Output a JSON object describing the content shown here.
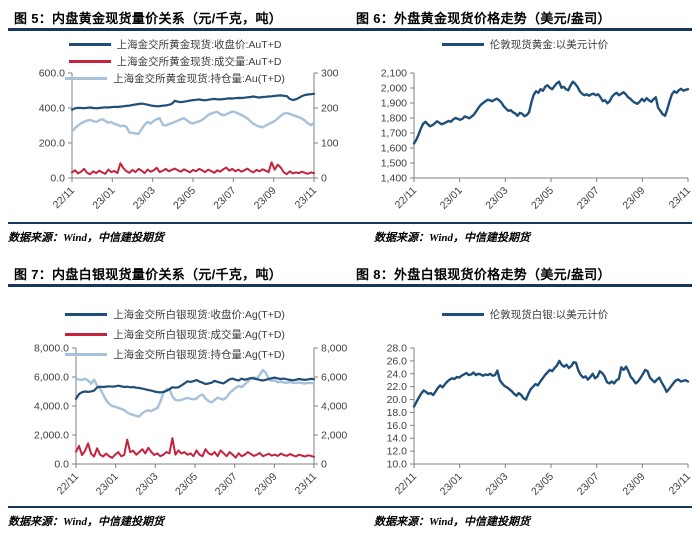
{
  "page": {
    "background": "#ffffff",
    "rule_color": "#17375E",
    "axis_color": "#808080",
    "label_color": "#404040"
  },
  "chart_data": [
    {
      "type": "line",
      "title": "图 5：内盘黄金现货量价关系（元/千克，吨）",
      "source": "数据来源：Wind，中信建投期货",
      "legend_position": "top-center",
      "legend": [
        {
          "label": "上海金交所黄金现货:收盘价:AuT+D",
          "color": "#1F4E79"
        },
        {
          "label": "上海金交所黄金现货:成交量:AuT+D",
          "color": "#C5233D"
        },
        {
          "label": "上海金交所黄金现货:持仓量:Au(T+D)",
          "color": "#A6C1DA"
        }
      ],
      "left_axis": {
        "min": 0,
        "max": 600,
        "step": 200,
        "decimals": 1
      },
      "right_axis": {
        "min": 0,
        "max": 300,
        "step": 100,
        "decimals": 0
      },
      "x_labels": [
        "22/11",
        "23/01",
        "23/03",
        "23/05",
        "23/07",
        "23/09",
        "23/11"
      ],
      "series": [
        {
          "name": "上海金交所黄金现货:持仓量:Au(T+D)",
          "axis": "right",
          "color": "#A6C1DA",
          "width": 2.4,
          "values": [
            133,
            142,
            150,
            156,
            161,
            164,
            166,
            163,
            160,
            165,
            168,
            163,
            158,
            160,
            155,
            152,
            148,
            150,
            146,
            130,
            129,
            127,
            126,
            140,
            152,
            160,
            156,
            163,
            168,
            171,
            152,
            150,
            154,
            157,
            160,
            164,
            168,
            171,
            165,
            158,
            156,
            159,
            162,
            166,
            172,
            180,
            184,
            187,
            189,
            183,
            179,
            182,
            186,
            190,
            188,
            184,
            180,
            176,
            170,
            162,
            155,
            150,
            147,
            145,
            150,
            154,
            158,
            163,
            170,
            178,
            184,
            186,
            183,
            180,
            177,
            174,
            170,
            164,
            156,
            151,
            158
          ]
        },
        {
          "name": "上海金交所黄金现货:成交量:AuT+D",
          "axis": "right",
          "color": "#C5233D",
          "width": 2,
          "values": [
            16,
            22,
            13,
            18,
            26,
            15,
            11,
            19,
            14,
            21,
            16,
            12,
            24,
            17,
            20,
            14,
            42,
            28,
            19,
            15,
            23,
            17,
            26,
            21,
            14,
            24,
            18,
            22,
            29,
            17,
            21,
            26,
            19,
            23,
            27,
            22,
            18,
            25,
            21,
            16,
            23,
            19,
            26,
            22,
            17,
            24,
            20,
            15,
            22,
            18,
            25,
            30,
            21,
            26,
            19,
            24,
            18,
            22,
            27,
            20,
            16,
            23,
            19,
            25,
            21,
            17,
            45,
            24,
            38,
            30,
            16,
            11,
            19,
            13,
            16,
            14,
            18,
            15,
            12,
            16,
            14
          ]
        },
        {
          "name": "上海金交所黄金现货:收盘价:AuT+D",
          "axis": "left",
          "color": "#1F4E79",
          "width": 2.2,
          "values": [
            390,
            398,
            401,
            400,
            399,
            401,
            403,
            400,
            398,
            400,
            402,
            404,
            403,
            405,
            407,
            406,
            408,
            410,
            412,
            414,
            417,
            420,
            423,
            425,
            422,
            419,
            415,
            412,
            410,
            411,
            413,
            415,
            418,
            424,
            441,
            436,
            433,
            436,
            439,
            442,
            445,
            447,
            449,
            446,
            444,
            447,
            450,
            452,
            450,
            449,
            451,
            453,
            455,
            454,
            456,
            458,
            457,
            459,
            461,
            463,
            466,
            462,
            460,
            463,
            464,
            466,
            467,
            469,
            471,
            472,
            470,
            468,
            452,
            446,
            450,
            458,
            468,
            474,
            477,
            479,
            481
          ]
        }
      ]
    },
    {
      "type": "line",
      "title": "图 6：外盘黄金现货价格走势（美元/盎司）",
      "source": "数据来源：Wind，中信建投期货",
      "legend_position": "top-center",
      "legend": [
        {
          "label": "伦敦现货黄金:以美元计价",
          "color": "#1F4E79"
        }
      ],
      "left_axis": {
        "min": 1400,
        "max": 2100,
        "step": 100,
        "decimals": 0
      },
      "x_labels": [
        "22/11",
        "23/01",
        "23/03",
        "23/05",
        "23/07",
        "23/09",
        "23/11"
      ],
      "series": [
        {
          "name": "伦敦现货黄金:以美元计价",
          "axis": "left",
          "color": "#1F4E79",
          "width": 2.4,
          "values": [
            1630,
            1655,
            1690,
            1730,
            1762,
            1775,
            1758,
            1745,
            1752,
            1763,
            1778,
            1768,
            1758,
            1764,
            1772,
            1780,
            1775,
            1790,
            1800,
            1795,
            1788,
            1795,
            1810,
            1805,
            1798,
            1810,
            1822,
            1845,
            1868,
            1888,
            1900,
            1912,
            1922,
            1918,
            1912,
            1922,
            1928,
            1918,
            1902,
            1878,
            1862,
            1848,
            1852,
            1838,
            1830,
            1815,
            1835,
            1828,
            1812,
            1820,
            1838,
            1905,
            1955,
            1978,
            1968,
            1992,
            1982,
            2008,
            2018,
            2002,
            1992,
            2012,
            2032,
            2042,
            2002,
            2008,
            1992,
            1985,
            2018,
            2042,
            2028,
            2008,
            1978,
            1962,
            1952,
            1958,
            1948,
            1958,
            1962,
            1952,
            1958,
            1938,
            1912,
            1918,
            1898,
            1912,
            1942,
            1958,
            1968,
            1952,
            1962,
            1972,
            1958,
            1938,
            1928,
            1912,
            1902,
            1895,
            1908,
            1928,
            1912,
            1932,
            1918,
            1908,
            1925,
            1938,
            1868,
            1848,
            1825,
            1815,
            1858,
            1912,
            1958,
            1978,
            1968,
            1985,
            1995,
            1982,
            1988,
            1992
          ]
        }
      ]
    },
    {
      "type": "line",
      "title": "图 7：内盘白银现货量价关系（元/千克，吨）",
      "source": "数据来源：Wind，中信建投期货",
      "legend_position": "top-center",
      "legend": [
        {
          "label": "上海金交所白银现货:收盘价:Ag(T+D)",
          "color": "#1F4E79"
        },
        {
          "label": "上海金交所白银现货:成交量:Ag(T+D)",
          "color": "#C5233D"
        },
        {
          "label": "上海金交所白银现货:持仓量:Ag(T+D)",
          "color": "#A6C1DA"
        }
      ],
      "left_axis": {
        "min": 0,
        "max": 8000,
        "step": 2000,
        "decimals": 1
      },
      "right_axis": {
        "min": 0,
        "max": 8000,
        "step": 2000,
        "decimals": 0
      },
      "x_labels": [
        "22/11",
        "23/01",
        "23/03",
        "23/05",
        "23/07",
        "23/09",
        "23/11"
      ],
      "series": [
        {
          "name": "上海金交所白银现货:持仓量:Ag(T+D)",
          "axis": "right",
          "color": "#A6C1DA",
          "width": 2.4,
          "values": [
            5880,
            5830,
            5790,
            5880,
            5760,
            5540,
            5820,
            5400,
            5200,
            4800,
            4400,
            4150,
            4000,
            3950,
            3880,
            3800,
            3720,
            3550,
            3450,
            3380,
            3320,
            3280,
            3500,
            3650,
            3700,
            3640,
            3780,
            3850,
            4300,
            4900,
            5150,
            5180,
            4650,
            4420,
            4380,
            4420,
            4500,
            4560,
            4500,
            4460,
            4510,
            4700,
            4790,
            4520,
            4340,
            4240,
            4420,
            4580,
            4500,
            4440,
            4600,
            4900,
            5080,
            5250,
            5380,
            5300,
            5480,
            5680,
            5880,
            5980,
            5900,
            6150,
            6480,
            6300,
            5850,
            5740,
            5780,
            5640,
            5680,
            5620,
            5600,
            5650,
            5600,
            5580,
            5620,
            5580,
            5550,
            5600,
            5580,
            5560
          ]
        },
        {
          "name": "上海金交所白银现货:成交量:Ag(T+D)",
          "axis": "right",
          "color": "#C5233D",
          "width": 2,
          "values": [
            850,
            1250,
            620,
            900,
            1420,
            700,
            520,
            1080,
            640,
            520,
            720,
            540,
            430,
            640,
            820,
            540,
            620,
            1680,
            820,
            920,
            640,
            820,
            1020,
            730,
            1120,
            830,
            620,
            730,
            540,
            640,
            830,
            730,
            1780,
            640,
            940,
            730,
            820,
            640,
            730,
            540,
            940,
            640,
            540,
            1020,
            740,
            640,
            820,
            540,
            940,
            740,
            540,
            820,
            640,
            440,
            740,
            540,
            640,
            820,
            700,
            560,
            640,
            760,
            540,
            620,
            700,
            580,
            640,
            560,
            720,
            620,
            560,
            680,
            600,
            520,
            640,
            580,
            520,
            600,
            560,
            500
          ]
        },
        {
          "name": "上海金交所白银现货:收盘价:Ag(T+D)",
          "axis": "left",
          "color": "#1F4E79",
          "width": 2.2,
          "values": [
            4500,
            4820,
            4950,
            5000,
            4970,
            5010,
            5060,
            5280,
            5330,
            5310,
            5340,
            5360,
            5330,
            5350,
            5400,
            5360,
            5310,
            5330,
            5290,
            5310,
            5260,
            5240,
            5200,
            5150,
            5100,
            5060,
            5000,
            4960,
            4940,
            4970,
            5040,
            5150,
            5300,
            5260,
            5290,
            5420,
            5560,
            5700,
            5660,
            5710,
            5790,
            5680,
            5610,
            5520,
            5560,
            5610,
            5740,
            5660,
            5610,
            5560,
            5700,
            5840,
            5890,
            5810,
            5760,
            5890,
            5810,
            5860,
            5930,
            5890,
            5850,
            5800,
            5760,
            5810,
            5870,
            5920,
            5960,
            5900,
            5860,
            5890,
            5840,
            5800,
            5770,
            5810,
            5860,
            5830,
            5800,
            5840,
            5870,
            5850
          ]
        }
      ]
    },
    {
      "type": "line",
      "title": "图 8：外盘白银现货价格走势（美元/盎司）",
      "source": "数据来源：Wind，中信建投期货",
      "legend_position": "top-center",
      "legend": [
        {
          "label": "伦敦现货白银:以美元计价",
          "color": "#1F4E79"
        }
      ],
      "left_axis": {
        "min": 10,
        "max": 28,
        "step": 2,
        "decimals": 1
      },
      "x_labels": [
        "22/11",
        "23/01",
        "23/03",
        "23/05",
        "23/07",
        "23/09",
        "23/11"
      ],
      "series": [
        {
          "name": "伦敦现货白银:以美元计价",
          "axis": "left",
          "color": "#1F4E79",
          "width": 2.4,
          "values": [
            18.9,
            19.6,
            20.3,
            20.9,
            21.4,
            21.2,
            20.9,
            21.0,
            20.7,
            21.2,
            21.8,
            22.2,
            21.9,
            22.4,
            22.8,
            23.1,
            23.3,
            23.2,
            23.5,
            23.4,
            23.7,
            23.9,
            24.1,
            23.8,
            23.9,
            24.2,
            23.8,
            24.0,
            23.9,
            23.7,
            23.9,
            23.8,
            24.0,
            23.7,
            23.8,
            24.5,
            23.0,
            22.5,
            22.1,
            21.9,
            21.6,
            21.3,
            20.9,
            20.6,
            21.0,
            20.7,
            20.2,
            20.0,
            20.9,
            21.6,
            22.0,
            22.4,
            22.2,
            22.8,
            23.3,
            23.8,
            24.2,
            24.6,
            24.4,
            24.9,
            25.3,
            26.0,
            25.4,
            25.1,
            25.4,
            24.9,
            25.2,
            25.8,
            25.7,
            24.5,
            23.8,
            23.4,
            23.6,
            23.1,
            23.5,
            24.0,
            23.3,
            23.6,
            24.4,
            24.1,
            23.6,
            22.7,
            22.5,
            22.8,
            22.5,
            23.0,
            23.2,
            25.0,
            24.6,
            25.1,
            24.4,
            23.5,
            23.1,
            22.5,
            22.8,
            23.3,
            23.9,
            24.6,
            24.4,
            23.4,
            23.0,
            22.7,
            23.1,
            23.4,
            22.6,
            22.0,
            21.2,
            21.6,
            22.1,
            22.6,
            23.0,
            23.1,
            22.8,
            22.9,
            23.0,
            22.8
          ]
        }
      ]
    }
  ]
}
